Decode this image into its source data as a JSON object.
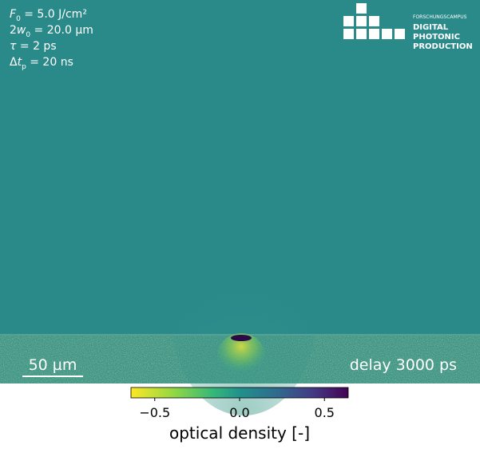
{
  "parameters": [
    {
      "var": "F",
      "sub": "0",
      "text": " = 5.0 J/cm²"
    },
    {
      "prefix": "2",
      "var": "w",
      "sub": "0",
      "text": " = 20.0 µm"
    },
    {
      "var": "τ",
      "text": " = 2 ps"
    },
    {
      "prefix": "Δ",
      "var": "t",
      "sub": "p",
      "text": " = 20 ns"
    }
  ],
  "logo": {
    "line1": "FORSCHUNGSCAMPUS",
    "line2": "DIGITAL",
    "line3": "PHOTONIC",
    "line4": "PRODUCTION"
  },
  "scale_bar": "50 µm",
  "delay": "delay 3000 ps",
  "colorbar": {
    "label": "optical density [-]",
    "lim": [
      -0.64,
      0.64
    ],
    "ticks": [
      {
        "value": -0.5,
        "label": "−0.5"
      },
      {
        "value": 0,
        "label": "0.0"
      },
      {
        "value": 0.5,
        "label": "0.5"
      }
    ]
  }
}
